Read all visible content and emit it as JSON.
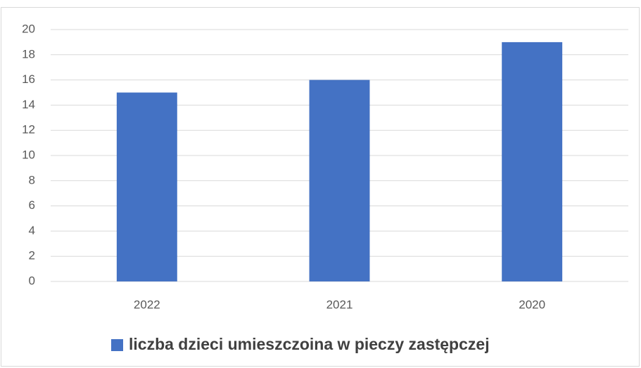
{
  "chart_data": {
    "type": "bar",
    "categories": [
      "2022",
      "2021",
      "2020"
    ],
    "series": [
      {
        "name": "liczba dzieci umieszczoina w pieczy zastępczej",
        "color": "#4472c4",
        "values": [
          15,
          16,
          19
        ]
      }
    ],
    "ylim": [
      0,
      20
    ],
    "yticks": [
      0,
      2,
      4,
      6,
      8,
      10,
      12,
      14,
      16,
      18,
      20
    ],
    "grid": true,
    "legend": "bottom"
  }
}
